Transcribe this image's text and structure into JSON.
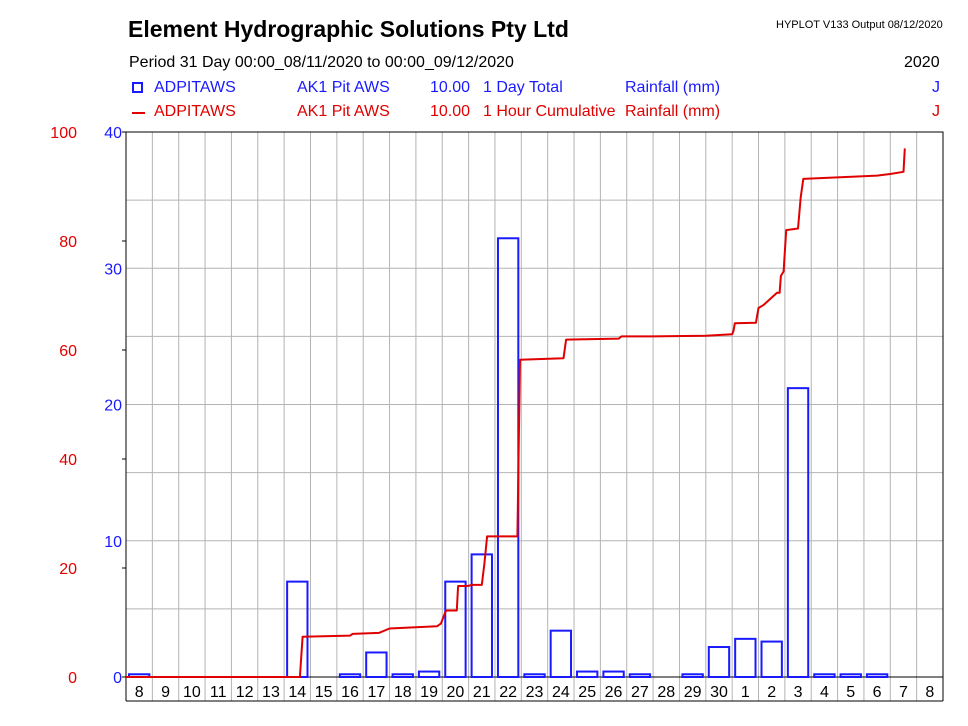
{
  "header": {
    "title": "Element Hydrographic Solutions Pty Ltd",
    "version": "HYPLOT V133  Output 08/12/2020",
    "period": "Period  31 Day    00:00_08/11/2020 to 00:00_09/12/2020",
    "year": "2020"
  },
  "legend": [
    {
      "site": "ADPITAWS",
      "name": "AK1 Pit AWS",
      "varnum": "10.00",
      "desc": "1 Day Total",
      "unit": "Rainfall (mm)",
      "flag": "J",
      "color": "#1a1aff",
      "style": "box"
    },
    {
      "site": "ADPITAWS",
      "name": "AK1 Pit AWS",
      "varnum": "10.00",
      "desc": "1 Hour Cumulative",
      "unit": "Rainfall (mm)",
      "flag": "J",
      "color": "#e00000",
      "style": "line"
    }
  ],
  "chart_data": {
    "type": "bar",
    "title": "Element Hydrographic Solutions Pty Ltd",
    "categories": [
      "8",
      "9",
      "10",
      "11",
      "12",
      "13",
      "14",
      "15",
      "16",
      "17",
      "18",
      "19",
      "20",
      "21",
      "22",
      "23",
      "24",
      "25",
      "26",
      "27",
      "28",
      "29",
      "30",
      "1",
      "2",
      "3",
      "4",
      "5",
      "6",
      "7",
      "8"
    ],
    "y_left_ticks": [
      "0",
      "20",
      "40",
      "60",
      "80",
      "100"
    ],
    "y_left_lim": [
      0,
      100
    ],
    "y_right_ticks": [
      "0",
      "10",
      "20",
      "30",
      "40"
    ],
    "y_right_lim": [
      0,
      40
    ],
    "series": [
      {
        "name": "1 Day Total",
        "type": "bar",
        "axis": "right",
        "color": "#1a1aff",
        "values": [
          0.2,
          0,
          0,
          0,
          0,
          0,
          7.0,
          0,
          0.2,
          1.8,
          0.2,
          0.4,
          7.0,
          9.0,
          32.2,
          0.2,
          3.4,
          0.4,
          0.4,
          0.2,
          0,
          0.2,
          2.2,
          2.8,
          2.6,
          21.2,
          0.2,
          0.2,
          0.2,
          0,
          0
        ]
      },
      {
        "name": "1 Hour Cumulative",
        "type": "line",
        "axis": "left",
        "color": "#e00000",
        "x": [
          0,
          6.6,
          6.7,
          8.5,
          8.6,
          9.6,
          10.0,
          11.8,
          11.95,
          12.1,
          12.15,
          12.55,
          12.6,
          12.95,
          13.15,
          13.5,
          13.6,
          13.7,
          14.85,
          14.95,
          16.6,
          16.7,
          18.7,
          18.8,
          20.0,
          22.0,
          23.0,
          23.05,
          23.1,
          23.9,
          24.0,
          24.2,
          24.7,
          24.8,
          24.85,
          24.95,
          25.05,
          25.5,
          25.6,
          25.7,
          28.5,
          29.0,
          29.5,
          29.55
        ],
        "values": [
          0,
          0,
          7.4,
          7.6,
          7.9,
          8.1,
          8.9,
          9.3,
          9.8,
          11.7,
          12.2,
          12.2,
          16.7,
          16.7,
          16.9,
          16.9,
          20.8,
          25.8,
          25.8,
          58.2,
          58.5,
          61.9,
          62.1,
          62.5,
          62.5,
          62.6,
          62.9,
          63.5,
          64.9,
          65.0,
          67.7,
          68.3,
          70.5,
          70.5,
          73.6,
          74.4,
          82.0,
          82.3,
          88.0,
          91.4,
          92.0,
          92.3,
          92.7,
          97.0
        ]
      }
    ]
  }
}
